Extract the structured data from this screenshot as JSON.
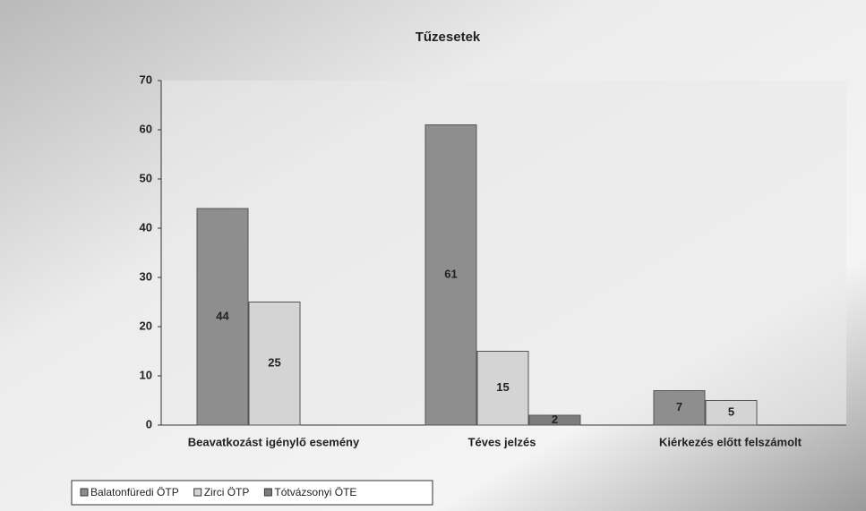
{
  "chart_data": {
    "type": "bar",
    "title": "Tűzesetek",
    "categories": [
      "Beavatkozást igénylő esemény",
      "Téves jelzés",
      "Kiérkezés előtt felszámolt"
    ],
    "series": [
      {
        "name": "Balatonfüredi ÖTP",
        "color": "#8e8e8e",
        "values": [
          44,
          61,
          7
        ]
      },
      {
        "name": "Zirci ÖTP",
        "color": "#d4d4d4",
        "values": [
          25,
          15,
          5
        ]
      },
      {
        "name": "Tótvázsonyi ÖTE",
        "color": "#7c7c7c",
        "values": [
          null,
          2,
          null
        ]
      }
    ],
    "ylim": [
      0,
      70
    ],
    "yticks": [
      0,
      10,
      20,
      30,
      40,
      50,
      60,
      70
    ],
    "grid": false,
    "legend": "bottom"
  }
}
